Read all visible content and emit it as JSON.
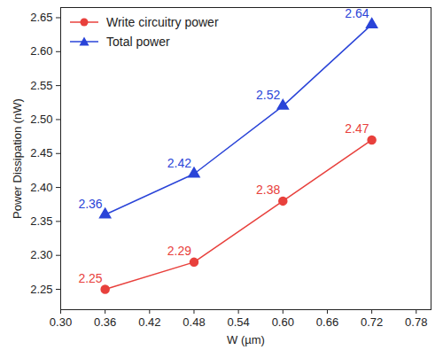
{
  "chart_data": {
    "type": "line",
    "x_label": "W (µm)",
    "y_label": "Power Dissipation (nW)",
    "x": [
      0.36,
      0.48,
      0.6,
      0.72
    ],
    "series": [
      {
        "name": "Write circuitry power",
        "color": "#e8403c",
        "marker": "circle",
        "values": [
          2.25,
          2.29,
          2.38,
          2.47
        ]
      },
      {
        "name": "Total power",
        "color": "#2a44d8",
        "marker": "triangle",
        "values": [
          2.36,
          2.42,
          2.52,
          2.64
        ]
      }
    ],
    "xlim": [
      0.3,
      0.8
    ],
    "xticks": [
      {
        "value": 0.3,
        "label": "0.30"
      },
      0.36,
      0.42,
      0.48,
      0.54,
      {
        "value": 0.6,
        "label": "0.60"
      },
      0.66,
      0.72,
      0.78
    ],
    "ylim": [
      2.22,
      2.665
    ],
    "yticks": [
      2.25,
      {
        "value": 2.3,
        "label": "2.30"
      },
      2.35,
      {
        "value": 2.4,
        "label": "2.40"
      },
      2.45,
      {
        "value": 2.5,
        "label": "2.50"
      },
      2.55,
      {
        "value": 2.6,
        "label": "2.60"
      },
      2.65
    ],
    "data_labels": true,
    "legend": "upper left",
    "grid": false
  }
}
